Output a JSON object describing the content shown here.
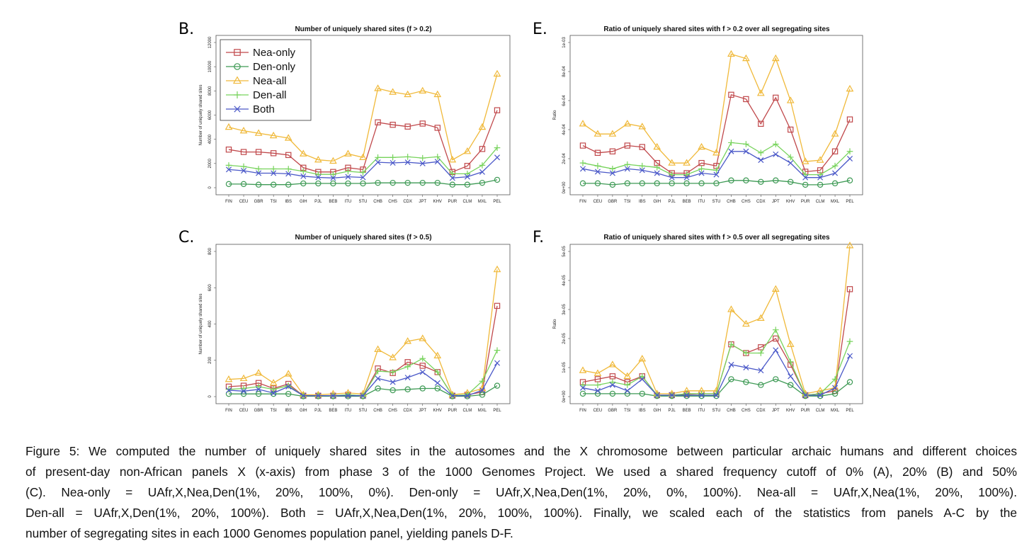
{
  "panel_letters": [
    "B.",
    "E.",
    "C.",
    "F."
  ],
  "populations": [
    "FIN",
    "CEU",
    "GBR",
    "TSI",
    "IBS",
    "GIH",
    "PJL",
    "BEB",
    "ITU",
    "STU",
    "CHB",
    "CHS",
    "CDX",
    "JPT",
    "KHV",
    "PUR",
    "CLM",
    "MXL",
    "PEL"
  ],
  "legend": [
    "Nea-only",
    "Den-only",
    "Nea-all",
    "Den-all",
    "Both"
  ],
  "colors": {
    "Nea-only": "#c0484b",
    "Den-only": "#3e9a55",
    "Nea-all": "#f0b93a",
    "Den-all": "#77d35c",
    "Both": "#4a58c8"
  },
  "chart_data": [
    {
      "type": "line",
      "panel": "B.",
      "title": "Number of uniquely shared sites (f > 0.2)",
      "ylabel": "Number of uniquely shared sites",
      "yticks": [
        "0",
        "2000",
        "4000",
        "6000",
        "8000",
        "10000",
        "12000"
      ],
      "ylim": [
        0,
        12000
      ],
      "legend_position": "top-left",
      "series": [
        {
          "name": "Nea-only",
          "values": [
            3150,
            2950,
            2950,
            2850,
            2700,
            1650,
            1300,
            1300,
            1650,
            1500,
            5400,
            5200,
            5050,
            5300,
            4950,
            1300,
            1800,
            3200,
            6400
          ]
        },
        {
          "name": "Den-only",
          "values": [
            300,
            300,
            250,
            250,
            250,
            350,
            350,
            350,
            350,
            350,
            400,
            400,
            400,
            400,
            400,
            250,
            250,
            400,
            650
          ]
        },
        {
          "name": "Nea-all",
          "values": [
            5000,
            4700,
            4500,
            4300,
            4100,
            2800,
            2300,
            2200,
            2800,
            2500,
            8200,
            7900,
            7700,
            8000,
            7700,
            2300,
            3000,
            5000,
            9400
          ]
        },
        {
          "name": "Den-all",
          "values": [
            1850,
            1750,
            1550,
            1550,
            1550,
            1350,
            1100,
            1100,
            1350,
            1250,
            2500,
            2500,
            2550,
            2450,
            2550,
            1150,
            1150,
            1850,
            3300
          ]
        },
        {
          "name": "Both",
          "values": [
            1500,
            1400,
            1200,
            1200,
            1150,
            950,
            850,
            800,
            900,
            850,
            2100,
            2050,
            2100,
            2000,
            2150,
            800,
            900,
            1300,
            2500
          ]
        }
      ]
    },
    {
      "type": "line",
      "panel": "E.",
      "title": "Ratio of uniquely shared sites with f > 0.2 over all segregating sites",
      "ylabel": "Ratio",
      "yticks": [
        "0e+00",
        "2e-04",
        "4e-04",
        "6e-04",
        "8e-04",
        "1e-03"
      ],
      "ylim": [
        0,
        0.001
      ],
      "series": [
        {
          "name": "Nea-only",
          "values": [
            0.00029,
            0.00024,
            0.00025,
            0.00029,
            0.00028,
            0.00017,
            0.0001,
            0.0001,
            0.00017,
            0.00015,
            0.00064,
            0.00061,
            0.00044,
            0.00062,
            0.0004,
            0.00011,
            0.00012,
            0.00025,
            0.00047
          ]
        },
        {
          "name": "Den-only",
          "values": [
            3e-05,
            3e-05,
            2e-05,
            3e-05,
            3e-05,
            3e-05,
            3e-05,
            3e-05,
            3e-05,
            3e-05,
            5e-05,
            5e-05,
            4e-05,
            5e-05,
            4e-05,
            2e-05,
            2e-05,
            3e-05,
            5e-05
          ]
        },
        {
          "name": "Nea-all",
          "values": [
            0.00044,
            0.00037,
            0.00037,
            0.00044,
            0.00042,
            0.00028,
            0.00017,
            0.00017,
            0.00028,
            0.00024,
            0.00092,
            0.00089,
            0.00065,
            0.00089,
            0.0006,
            0.00018,
            0.00019,
            0.00037,
            0.00068
          ]
        },
        {
          "name": "Den-all",
          "values": [
            0.00017,
            0.00015,
            0.00013,
            0.00016,
            0.00015,
            0.00014,
            9e-05,
            9e-05,
            0.00013,
            0.00012,
            0.00031,
            0.0003,
            0.00024,
            0.0003,
            0.00021,
            9e-05,
            9e-05,
            0.00015,
            0.00025
          ]
        },
        {
          "name": "Both",
          "values": [
            0.00013,
            0.00011,
            0.0001,
            0.00013,
            0.00012,
            0.0001,
            7e-05,
            7e-05,
            0.0001,
            9e-05,
            0.00025,
            0.00025,
            0.00019,
            0.00023,
            0.00017,
            7e-05,
            7e-05,
            0.0001,
            0.0002
          ]
        }
      ]
    },
    {
      "type": "line",
      "panel": "C.",
      "title": "Number of uniquely shared sites (f > 0.5)",
      "ylabel": "Number of uniquely shared sites",
      "yticks": [
        "0",
        "200",
        "400",
        "600",
        "800"
      ],
      "ylim": [
        0,
        800
      ],
      "series": [
        {
          "name": "Nea-only",
          "values": [
            55,
            60,
            75,
            45,
            70,
            5,
            5,
            5,
            10,
            5,
            155,
            130,
            190,
            170,
            135,
            5,
            10,
            25,
            500
          ]
        },
        {
          "name": "Den-only",
          "values": [
            15,
            15,
            15,
            15,
            15,
            2,
            2,
            2,
            2,
            2,
            45,
            35,
            40,
            45,
            45,
            2,
            2,
            10,
            60
          ]
        },
        {
          "name": "Nea-all",
          "values": [
            95,
            100,
            130,
            75,
            125,
            10,
            10,
            15,
            20,
            15,
            260,
            215,
            305,
            320,
            225,
            10,
            20,
            45,
            700
          ]
        },
        {
          "name": "Den-all",
          "values": [
            40,
            45,
            55,
            40,
            60,
            5,
            5,
            5,
            10,
            5,
            140,
            135,
            165,
            210,
            135,
            5,
            10,
            85,
            255
          ]
        },
        {
          "name": "Both",
          "values": [
            35,
            30,
            40,
            20,
            55,
            5,
            5,
            5,
            5,
            5,
            100,
            80,
            105,
            135,
            75,
            5,
            5,
            35,
            185
          ]
        }
      ]
    },
    {
      "type": "line",
      "panel": "F.",
      "title": "Ratio of uniquely shared sites with f > 0.5 over all segregating sites",
      "ylabel": "Ratio",
      "yticks": [
        "0e+00",
        "1e-05",
        "2e-05",
        "3e-05",
        "4e-05",
        "5e-05"
      ],
      "ylim": [
        0,
        5e-05
      ],
      "series": [
        {
          "name": "Nea-only",
          "values": [
            5e-06,
            6e-06,
            7e-06,
            5e-06,
            7e-06,
            5e-07,
            5e-07,
            8e-07,
            1e-06,
            1e-06,
            1.8e-05,
            1.5e-05,
            1.7e-05,
            2e-05,
            1.1e-05,
            5e-07,
            1e-06,
            2e-06,
            3.7e-05
          ]
        },
        {
          "name": "Den-only",
          "values": [
            1e-06,
            1e-06,
            1e-06,
            1e-06,
            1e-06,
            2e-07,
            2e-07,
            2e-07,
            2e-07,
            2e-07,
            6e-06,
            5e-06,
            4e-06,
            6e-06,
            4e-06,
            2e-07,
            2e-07,
            1e-06,
            5e-06
          ]
        },
        {
          "name": "Nea-all",
          "values": [
            9e-06,
            8e-06,
            1.1e-05,
            7e-06,
            1.3e-05,
            1e-06,
            1e-06,
            2e-06,
            2e-06,
            2e-06,
            3e-05,
            2.5e-05,
            2.7e-05,
            3.7e-05,
            1.8e-05,
            1e-06,
            2e-06,
            3e-06,
            5.2e-05
          ]
        },
        {
          "name": "Den-all",
          "values": [
            4e-06,
            4e-06,
            5e-06,
            4e-06,
            7e-06,
            5e-07,
            5e-07,
            1e-06,
            1e-06,
            1e-06,
            1.8e-05,
            1.5e-05,
            1.5e-05,
            2.3e-05,
            1.2e-05,
            5e-07,
            1e-06,
            6e-06,
            1.9e-05
          ]
        },
        {
          "name": "Both",
          "values": [
            3e-06,
            2e-06,
            4e-06,
            2e-06,
            6e-06,
            5e-07,
            5e-07,
            5e-07,
            5e-07,
            5e-07,
            1.1e-05,
            1e-05,
            9e-06,
            1.6e-05,
            7e-06,
            5e-07,
            5e-07,
            3e-06,
            1.4e-05
          ]
        }
      ]
    }
  ],
  "caption_lines": [
    "Figure 5: We computed the number of uniquely shared sites in the autosomes and the X chromosome between particular archaic humans and different choices",
    "of present-day non-African panels X (x-axis) from phase 3 of the 1000 Genomes Project. We used a shared frequency cutoff of 0% (A), 20% (B) and 50%",
    "(C). Nea-only = UAfr,X,Nea,Den(1%, 20%, 100%, 0%). Den-only = UAfr,X,Nea,Den(1%, 20%, 0%, 100%). Nea-all = UAfr,X,Nea(1%, 20%, 100%).",
    "Den-all = UAfr,X,Den(1%, 20%, 100%). Both = UAfr,X,Nea,Den(1%, 20%, 100%, 100%). Finally, we scaled each of the statistics from panels A-C by the",
    "number of segregating sites in each 1000 Genomes population panel, yielding panels D-F."
  ]
}
